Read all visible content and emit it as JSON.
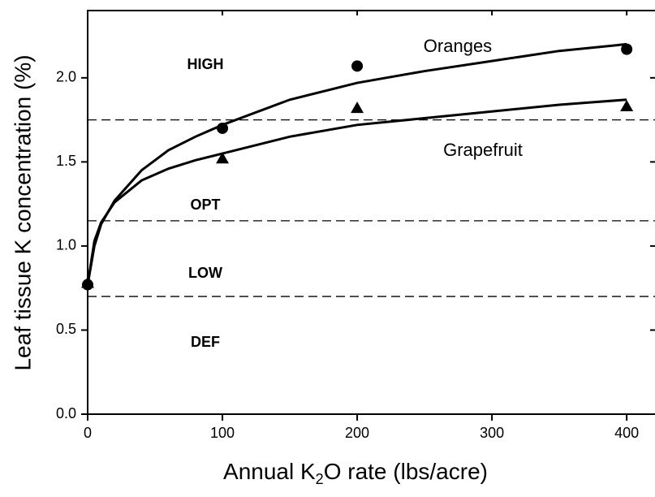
{
  "chart_data": {
    "type": "scatter",
    "xlabel": [
      "Annual K",
      "2",
      "O rate (lbs/acre)"
    ],
    "ylabel": "Leaf tissue K concentration (%)",
    "xlim": [
      0,
      421
    ],
    "ylim": [
      0,
      2.4
    ],
    "xticks": [
      0,
      100,
      200,
      300,
      400
    ],
    "yticks": [
      {
        "value": 0,
        "label": "0.0"
      },
      0.5,
      {
        "value": 1,
        "label": "1.0"
      },
      1.5,
      {
        "value": 2,
        "label": "2.0"
      }
    ],
    "reference_lines": [
      1.75,
      1.15,
      0.7
    ],
    "zones": [
      "HIGH",
      "OPT",
      "LOW",
      "DEF"
    ],
    "series": [
      {
        "name": "Oranges",
        "color": "#000000",
        "marker": "circle",
        "x": [
          0,
          100,
          200,
          400
        ],
        "values": [
          0.77,
          1.7,
          2.07,
          2.17
        ],
        "fit_x": [
          0,
          5,
          10,
          20,
          40,
          60,
          80,
          100,
          150,
          200,
          250,
          300,
          350,
          400
        ],
        "fit_values": [
          0.77,
          1.0,
          1.13,
          1.27,
          1.45,
          1.57,
          1.65,
          1.72,
          1.87,
          1.97,
          2.04,
          2.1,
          2.16,
          2.2
        ]
      },
      {
        "name": "Grapefruit",
        "color": "#000000",
        "marker": "triangle",
        "x": [
          0,
          100,
          200,
          400
        ],
        "values": [
          0.78,
          1.52,
          1.82,
          1.83
        ],
        "fit_x": [
          0,
          5,
          10,
          20,
          40,
          60,
          80,
          100,
          150,
          200,
          250,
          300,
          350,
          400
        ],
        "fit_values": [
          0.77,
          1.03,
          1.14,
          1.26,
          1.39,
          1.46,
          1.51,
          1.55,
          1.65,
          1.72,
          1.76,
          1.8,
          1.84,
          1.87
        ]
      }
    ]
  }
}
